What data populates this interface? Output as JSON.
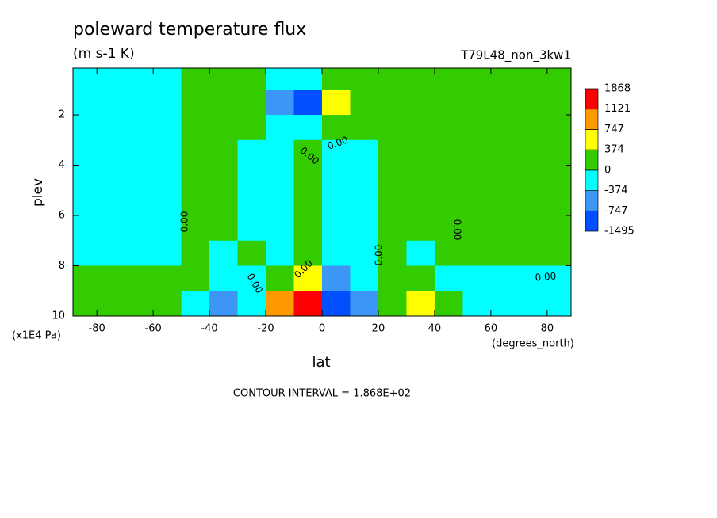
{
  "chart_data": {
    "type": "contour",
    "title": "poleward temperature flux",
    "subtitle": "(m s-1 K)",
    "run_label": "T79L48_non_3kw1",
    "x_label": "lat",
    "x_units": "(degrees_north)",
    "y_label": "plev",
    "y_units": "(x1E4 Pa)",
    "annotation": "CONTOUR INTERVAL = 1.868E+02",
    "xlim": [
      -88.5,
      88.5
    ],
    "xticks": [
      -80,
      -60,
      -40,
      -20,
      0,
      20,
      40,
      60,
      80
    ],
    "ylim": [
      0.14,
      10
    ],
    "yticks": [
      2,
      4,
      6,
      8,
      10
    ],
    "y_inverted": true,
    "levels": [
      -1495,
      -747,
      -374,
      0,
      374,
      747,
      1121,
      1868
    ],
    "colors": [
      "#0050ff",
      "#3c96f5",
      "#00ffff",
      "#33cc00",
      "#ffff00",
      "#ff9900",
      "#ff0000"
    ],
    "contour_labels": [
      "0.00",
      "0.00",
      "0.00",
      "0.00",
      "0.00",
      "0.00",
      "0.00",
      "0.00"
    ],
    "x": [
      -85,
      -75,
      -65,
      -55,
      -45,
      -35,
      -25,
      -15,
      -5,
      5,
      15,
      25,
      35,
      45,
      55,
      65,
      75,
      85
    ],
    "y": [
      0.5,
      1.5,
      2.5,
      3.5,
      4.5,
      5.5,
      6.5,
      7.5,
      8.5,
      9.5
    ],
    "z": [
      [
        -150,
        -150,
        -150,
        -150,
        50,
        50,
        50,
        -100,
        -100,
        100,
        100,
        100,
        100,
        100,
        100,
        100,
        100,
        100
      ],
      [
        -150,
        -150,
        -150,
        -150,
        50,
        100,
        100,
        -450,
        -800,
        550,
        300,
        150,
        100,
        100,
        100,
        100,
        100,
        100
      ],
      [
        -150,
        -150,
        -150,
        -150,
        50,
        100,
        100,
        -150,
        -200,
        200,
        150,
        100,
        100,
        100,
        100,
        100,
        100,
        100
      ],
      [
        -150,
        -150,
        -150,
        -150,
        50,
        100,
        -100,
        -100,
        30,
        -100,
        -100,
        100,
        100,
        100,
        100,
        100,
        100,
        100
      ],
      [
        -150,
        -150,
        -150,
        -150,
        50,
        100,
        -100,
        -150,
        30,
        -150,
        -100,
        100,
        100,
        100,
        100,
        100,
        100,
        100
      ],
      [
        -150,
        -150,
        -150,
        -150,
        50,
        100,
        -100,
        -150,
        30,
        -150,
        -100,
        100,
        100,
        100,
        100,
        100,
        100,
        100
      ],
      [
        -150,
        -150,
        -150,
        -150,
        50,
        100,
        -100,
        -150,
        50,
        -150,
        -100,
        100,
        100,
        100,
        100,
        100,
        100,
        100
      ],
      [
        -150,
        -150,
        -150,
        -150,
        50,
        -100,
        50,
        -150,
        200,
        -150,
        -100,
        100,
        -100,
        100,
        100,
        100,
        100,
        100
      ],
      [
        50,
        50,
        50,
        50,
        50,
        -300,
        -150,
        250,
        500,
        -500,
        -200,
        100,
        200,
        -100,
        -150,
        -150,
        -150,
        -150
      ],
      [
        50,
        50,
        50,
        50,
        -100,
        -450,
        -150,
        900,
        1500,
        -900,
        -450,
        100,
        450,
        50,
        -200,
        -200,
        -200,
        -200
      ]
    ]
  }
}
